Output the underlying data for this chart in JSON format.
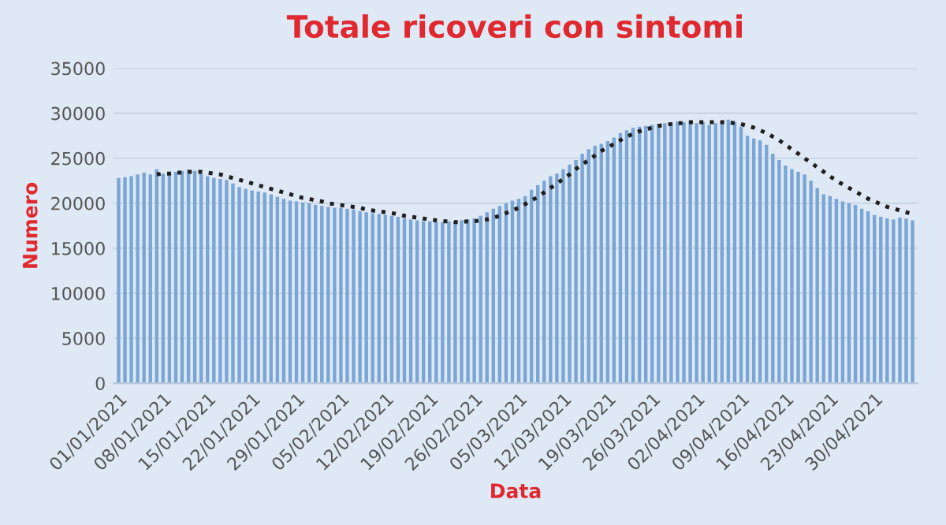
{
  "chart_data": {
    "type": "bar",
    "title": "Totale ricoveri con sintomi",
    "xlabel": "Data",
    "ylabel": "Numero",
    "categories": [
      "01/01/2021",
      null,
      null,
      null,
      null,
      null,
      null,
      "08/01/2021",
      null,
      null,
      null,
      null,
      null,
      null,
      "15/01/2021",
      null,
      null,
      null,
      null,
      null,
      null,
      "22/01/2021",
      null,
      null,
      null,
      null,
      null,
      null,
      "29/01/2021",
      null,
      null,
      null,
      null,
      null,
      null,
      "05/02/2021",
      null,
      null,
      null,
      null,
      null,
      null,
      "12/02/2021",
      null,
      null,
      null,
      null,
      null,
      null,
      "19/02/2021",
      null,
      null,
      null,
      null,
      null,
      null,
      "26/02/2021",
      null,
      null,
      null,
      null,
      null,
      null,
      "05/03/2021",
      null,
      null,
      null,
      null,
      null,
      null,
      "12/03/2021",
      null,
      null,
      null,
      null,
      null,
      null,
      "19/03/2021",
      null,
      null,
      null,
      null,
      null,
      null,
      "26/03/2021",
      null,
      null,
      null,
      null,
      null,
      null,
      "02/04/2021",
      null,
      null,
      null,
      null,
      null,
      null,
      "09/04/2021",
      null,
      null,
      null,
      null,
      null,
      null,
      "16/04/2021",
      null,
      null,
      null,
      null,
      null,
      null,
      "23/04/2021",
      null,
      null,
      null,
      null,
      null,
      null,
      "30/04/2021",
      null,
      null,
      null,
      null,
      null,
      null
    ],
    "series": [
      {
        "color": "#7aa6d6",
        "values": [
          22800,
          22900,
          23000,
          23200,
          23400,
          23200,
          23800,
          23300,
          23400,
          23500,
          23600,
          23700,
          23600,
          23300,
          23000,
          22800,
          22700,
          22600,
          22200,
          21800,
          21600,
          21400,
          21300,
          21200,
          21000,
          20700,
          20500,
          20300,
          20200,
          20100,
          20000,
          19800,
          19700,
          19600,
          19500,
          19500,
          19400,
          19300,
          19100,
          19000,
          18900,
          18800,
          18700,
          18600,
          18500,
          18300,
          18200,
          18100,
          18000,
          18000,
          17900,
          17900,
          18000,
          18000,
          18100,
          18200,
          18300,
          18600,
          19000,
          19400,
          19700,
          20000,
          20300,
          20500,
          20800,
          21500,
          22000,
          22500,
          23000,
          23300,
          23800,
          24300,
          24800,
          25500,
          26000,
          26400,
          26600,
          26900,
          27300,
          27800,
          28100,
          28400,
          28500,
          28600,
          28700,
          28800,
          28900,
          29000,
          29100,
          29000,
          29000,
          28900,
          29000,
          28700,
          28900,
          29100,
          29300,
          29000,
          28500,
          27500,
          27200,
          27000,
          26500,
          25500,
          24800,
          24200,
          23800,
          23500,
          23200,
          22500,
          21700,
          21000,
          20800,
          20500,
          20200,
          20000,
          19800,
          19400,
          19100,
          18700,
          18500,
          18300,
          18200,
          18400,
          18300,
          18100
        ]
      },
      {
        "type": "line",
        "color": "#1f1f1f",
        "line_style": "dotted",
        "values": [
          null,
          null,
          null,
          null,
          null,
          null,
          23200,
          23300,
          23300,
          23400,
          23400,
          23500,
          23500,
          23500,
          23400,
          23300,
          23200,
          23000,
          22800,
          22600,
          22400,
          22200,
          22000,
          21800,
          21600,
          21400,
          21200,
          21000,
          20800,
          20600,
          20500,
          20300,
          20200,
          20000,
          19900,
          19800,
          19700,
          19600,
          19500,
          19300,
          19200,
          19100,
          19000,
          18900,
          18800,
          18600,
          18500,
          18400,
          18300,
          18200,
          18100,
          18000,
          18000,
          17900,
          17900,
          18000,
          18000,
          18100,
          18200,
          18400,
          18600,
          18900,
          19200,
          19500,
          19900,
          20300,
          20700,
          21200,
          21700,
          22200,
          22700,
          23200,
          23800,
          24300,
          24800,
          25300,
          25800,
          26200,
          26600,
          27000,
          27400,
          27700,
          28000,
          28200,
          28400,
          28600,
          28700,
          28800,
          28900,
          28900,
          29000,
          29000,
          29000,
          29000,
          29000,
          29000,
          29000,
          28900,
          28800,
          28600,
          28400,
          28100,
          27800,
          27400,
          27000,
          26500,
          26000,
          25500,
          25000,
          24500,
          24000,
          23500,
          23000,
          22500,
          22100,
          21700,
          21300,
          20900,
          20500,
          20200,
          19900,
          19600,
          19400,
          19200,
          19000,
          18800
        ]
      }
    ],
    "ylim": [
      0,
      35000
    ],
    "yticks": [
      0,
      5000,
      10000,
      15000,
      20000,
      25000,
      30000,
      35000
    ],
    "grid": "y"
  }
}
